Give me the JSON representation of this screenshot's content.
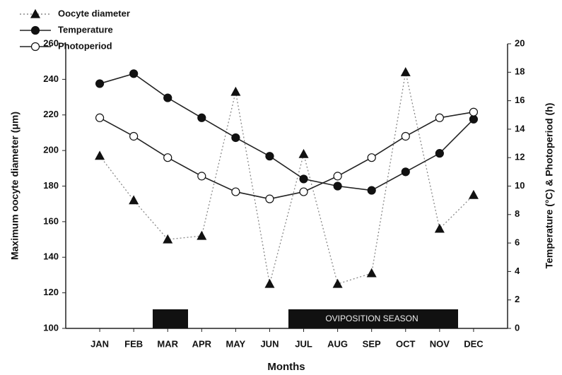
{
  "chart_data": {
    "type": "line",
    "x_label": "Months",
    "y_label": "Maximum oocyte diameter (μm)",
    "y2_label": "Temperature (°C) & Photoperiod (h)",
    "annotation": "OVIPOSITION SEASON",
    "categories": [
      "JAN",
      "FEB",
      "MAR",
      "APR",
      "MAY",
      "JUN",
      "JUL",
      "AUG",
      "SEP",
      "OCT",
      "NOV",
      "DEC"
    ],
    "series": [
      {
        "name": "Oocyte diameter",
        "color": "#888888",
        "marker": "triangle",
        "dash": "dotted",
        "values": [
          197,
          172,
          150,
          152,
          233,
          125,
          198,
          125,
          131,
          244,
          156,
          175
        ]
      },
      {
        "name": "Temperature",
        "color": "#222222",
        "marker": "filled-circle",
        "dash": "solid",
        "axis": "y2",
        "values": [
          17.2,
          17.9,
          16.2,
          14.8,
          13.4,
          12.1,
          10.5,
          10.0,
          9.7,
          11.0,
          12.3,
          14.7
        ]
      },
      {
        "name": "Photoperiod",
        "color": "#222222",
        "marker": "open-circle",
        "dash": "solid",
        "axis": "y2",
        "values": [
          14.8,
          13.5,
          12.0,
          10.7,
          9.6,
          9.1,
          9.6,
          10.7,
          12.0,
          13.5,
          14.8,
          15.2
        ]
      }
    ],
    "ylim": [
      100,
      260
    ],
    "yticks": [
      100,
      120,
      140,
      160,
      180,
      200,
      220,
      240,
      260
    ],
    "y2lim": [
      0,
      20
    ],
    "y2ticks": [
      0,
      2,
      4,
      6,
      8,
      10,
      12,
      14,
      16,
      18,
      20
    ]
  }
}
